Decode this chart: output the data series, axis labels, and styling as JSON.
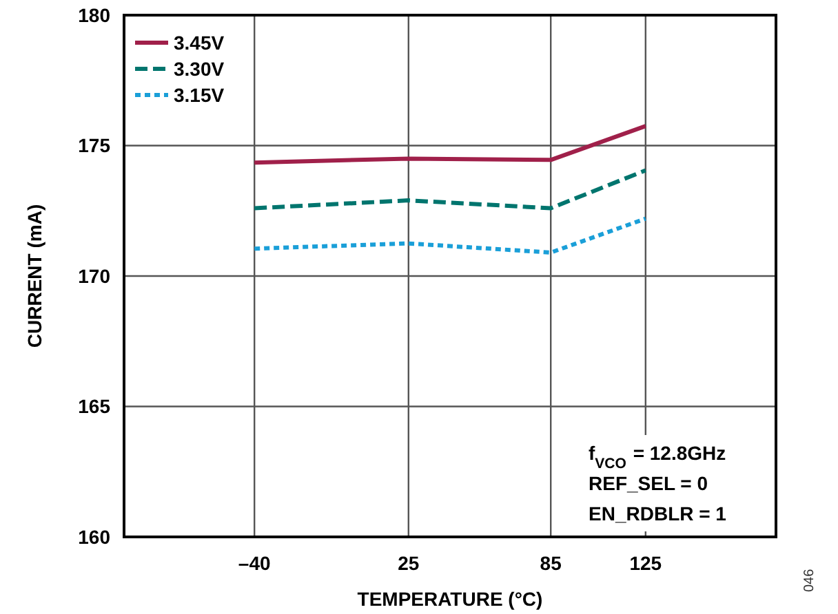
{
  "chart_data": {
    "type": "line",
    "xlabel": "TEMPERATURE (°C)",
    "ylabel": "CURRENT (mA)",
    "x": [
      -40,
      25,
      85,
      125
    ],
    "xlim": [
      -95,
      180
    ],
    "xticks": [
      {
        "value": -40,
        "label": "–40"
      },
      25,
      85,
      125
    ],
    "ylim": [
      160,
      180
    ],
    "yticks": [
      160,
      165,
      170,
      175,
      180
    ],
    "grid": true,
    "legend": "top left",
    "marker": "none",
    "series": [
      {
        "name": "3.45V",
        "color": "#a0204a",
        "line_style": "solid",
        "values": [
          174.35,
          174.5,
          174.45,
          175.75
        ]
      },
      {
        "name": "3.30V",
        "color": "#00756e",
        "line_style": "dashed",
        "values": [
          172.6,
          172.9,
          172.6,
          174.05
        ]
      },
      {
        "name": "3.15V",
        "color": "#1a9fd8",
        "line_style": "dotted",
        "values": [
          171.05,
          171.25,
          170.9,
          172.2
        ]
      }
    ],
    "annotations": [
      "f$_{VCO}$ = 12.8GHz",
      "REF_SEL = 0",
      "EN_RDBLR = 1",
      "046"
    ]
  }
}
